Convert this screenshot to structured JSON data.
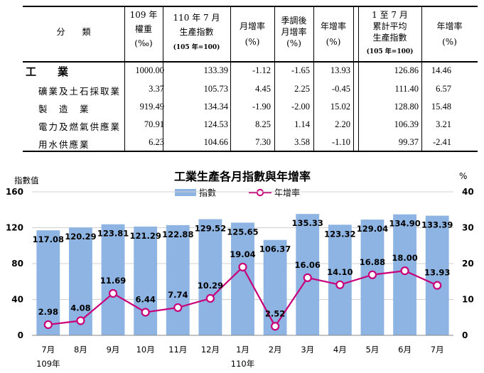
{
  "table": {
    "headers": {
      "category": "分　　類",
      "weight": [
        "109 年",
        "權重",
        "(‰)"
      ],
      "index_month": [
        "110 年 7 月",
        "生產指數"
      ],
      "index_base": "(105 年=100)",
      "mom": [
        "月增率",
        "(%)"
      ],
      "sa_mom": [
        "季調後",
        "月增率",
        "(%)"
      ],
      "yoy": [
        "年增率",
        "(%)"
      ],
      "ytd_index": [
        "1 至 7 月",
        "累計平均",
        "生產指數"
      ],
      "ytd_base": "(105 年=100)",
      "ytd_yoy": [
        "年增率",
        "(%)"
      ]
    },
    "rows": [
      {
        "name": "工　　業",
        "weight": "1000.00",
        "index": "133.39",
        "mom": "-1.12",
        "sa_mom": "-1.65",
        "yoy": "13.93",
        "ytd_index": "126.86",
        "ytd_yoy": "14.46"
      },
      {
        "name": "礦業及土石採取業",
        "weight": "3.37",
        "index": "105.73",
        "mom": "4.45",
        "sa_mom": "2.25",
        "yoy": "-0.45",
        "ytd_index": "111.40",
        "ytd_yoy": "6.57"
      },
      {
        "name": "製　造　業",
        "weight": "919.49",
        "index": "134.34",
        "mom": "-1.90",
        "sa_mom": "-2.00",
        "yoy": "15.02",
        "ytd_index": "128.80",
        "ytd_yoy": "15.48"
      },
      {
        "name": "電力及燃氣供應業",
        "weight": "70.91",
        "index": "124.53",
        "mom": "8.25",
        "sa_mom": "1.14",
        "yoy": "2.20",
        "ytd_index": "106.39",
        "ytd_yoy": "3.21"
      },
      {
        "name": "用水供應業",
        "weight": "6.23",
        "index": "104.66",
        "mom": "7.30",
        "sa_mom": "3.58",
        "yoy": "-1.10",
        "ytd_index": "99.37",
        "ytd_yoy": "-2.41"
      }
    ]
  },
  "chart_data": {
    "type": "bar",
    "title": "工業生產各月指數與年增率",
    "categories": [
      "7月",
      "8月",
      "9月",
      "10月",
      "11月",
      "12月",
      "1月",
      "2月",
      "3月",
      "4月",
      "5月",
      "6月",
      "7月"
    ],
    "year_labels": [
      {
        "index": 0,
        "label": "109年"
      },
      {
        "index": 6,
        "label": "110年"
      }
    ],
    "series": [
      {
        "name": "指數",
        "type": "bar",
        "axis": "left",
        "color": "#8db4e2",
        "values": [
          117.08,
          120.29,
          123.81,
          121.29,
          122.88,
          129.52,
          125.65,
          106.37,
          135.33,
          123.32,
          129.04,
          134.9,
          133.39
        ],
        "labels": [
          "117.08",
          "120.29",
          "123.81",
          "121.29",
          "122.88",
          "129.52",
          "125.65",
          "106.37",
          "135.33",
          "123.32",
          "129.04",
          "134.90",
          "133.39"
        ]
      },
      {
        "name": "年增率",
        "type": "line",
        "axis": "right",
        "color": "#c8007a",
        "values": [
          2.98,
          4.08,
          11.69,
          6.44,
          7.74,
          10.29,
          19.04,
          2.52,
          16.06,
          14.1,
          16.88,
          18.0,
          13.93
        ],
        "labels": [
          "2.98",
          "4.08",
          "11.69",
          "6.44",
          "7.74",
          "10.29",
          "19.04",
          "2.52",
          "16.06",
          "14.10",
          "16.88",
          "18.00",
          "13.93"
        ]
      }
    ],
    "y_left": {
      "label": "指數值",
      "min": 0,
      "max": 160,
      "ticks": [
        0,
        40,
        80,
        120,
        160
      ]
    },
    "y_right": {
      "label": "%",
      "min": 0,
      "max": 40,
      "ticks": [
        0,
        10,
        20,
        30,
        40
      ]
    },
    "grid": "horizontal",
    "legend_placement": "top-center"
  }
}
